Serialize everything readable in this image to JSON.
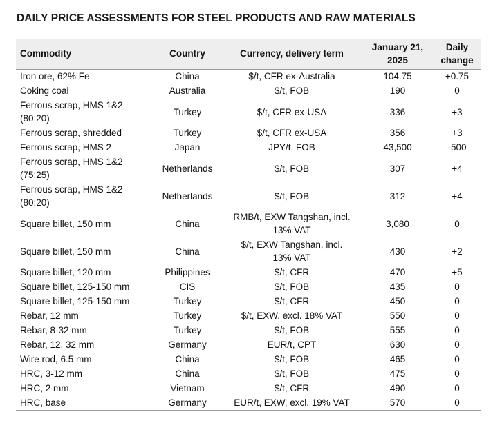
{
  "title": "DAILY PRICE ASSESSMENTS FOR STEEL PRODUCTS AND RAW MATERIALS",
  "headers": {
    "commodity": "Commodity",
    "country": "Country",
    "currency": "Currency, delivery term",
    "date": "January 21, 2025",
    "change": "Daily change"
  },
  "rows": [
    {
      "commodity": "Iron ore, 62% Fe",
      "country": "China",
      "currency": "$/t, CFR ex-Australia",
      "price": "104.75",
      "change": "+0.75"
    },
    {
      "commodity": "Coking coal",
      "country": "Australia",
      "currency": "$/t, FOB",
      "price": "190",
      "change": "0"
    },
    {
      "commodity": "Ferrous scrap, HMS 1&2 (80:20)",
      "country": "Turkey",
      "currency": "$/t, CFR ex-USA",
      "price": "336",
      "change": "+3"
    },
    {
      "commodity": "Ferrous scrap, shredded",
      "country": "Turkey",
      "currency": "$/t, CFR ex-USA",
      "price": "356",
      "change": "+3"
    },
    {
      "commodity": "Ferrous scrap, HMS 2",
      "country": "Japan",
      "currency": "JPY/t, FOB",
      "price": "43,500",
      "change": "-500"
    },
    {
      "commodity": "Ferrous scrap, HMS 1&2 (75:25)",
      "country": "Netherlands",
      "currency": "$/t, FOB",
      "price": "307",
      "change": "+4"
    },
    {
      "commodity": "Ferrous scrap, HMS 1&2 (80:20)",
      "country": "Netherlands",
      "currency": "$/t, FOB",
      "price": "312",
      "change": "+4"
    },
    {
      "commodity": "Square billet, 150 mm",
      "country": "China",
      "currency": "RMB/t, EXW Tangshan, incl. 13% VAT",
      "price": "3,080",
      "change": "0"
    },
    {
      "commodity": "Square billet, 150 mm",
      "country": "China",
      "currency": "$/t, EXW Tangshan, incl. 13% VAT",
      "price": "430",
      "change": "+2"
    },
    {
      "commodity": "Square billet, 120 mm",
      "country": "Philippines",
      "currency": "$/t, CFR",
      "price": "470",
      "change": "+5"
    },
    {
      "commodity": "Square billet, 125-150 mm",
      "country": "CIS",
      "currency": "$/t, FOB",
      "price": "435",
      "change": "0"
    },
    {
      "commodity": "Square billet, 125-150 mm",
      "country": "Turkey",
      "currency": "$/t, CFR",
      "price": "450",
      "change": "0"
    },
    {
      "commodity": "Rebar, 12 mm",
      "country": "Turkey",
      "currency": "$/t, EXW, excl. 18% VAT",
      "price": "550",
      "change": "0"
    },
    {
      "commodity": "Rebar, 8-32 mm",
      "country": "Turkey",
      "currency": "$/t, FOB",
      "price": "555",
      "change": "0"
    },
    {
      "commodity": "Rebar, 12, 32 mm",
      "country": "Germany",
      "currency": "EUR/t, CPT",
      "price": "630",
      "change": "0"
    },
    {
      "commodity": "Wire rod, 6.5 mm",
      "country": "China",
      "currency": "$/t, FOB",
      "price": "465",
      "change": "0"
    },
    {
      "commodity": "HRC, 3-12 mm",
      "country": "China",
      "currency": "$/t, FOB",
      "price": "475",
      "change": "0"
    },
    {
      "commodity": "HRC, 2 mm",
      "country": "Vietnam",
      "currency": "$/t, CFR",
      "price": "490",
      "change": "0"
    },
    {
      "commodity": "HRC, base",
      "country": "Germany",
      "currency": "EUR/t, EXW, excl. 19% VAT",
      "price": "570",
      "change": "0"
    }
  ]
}
